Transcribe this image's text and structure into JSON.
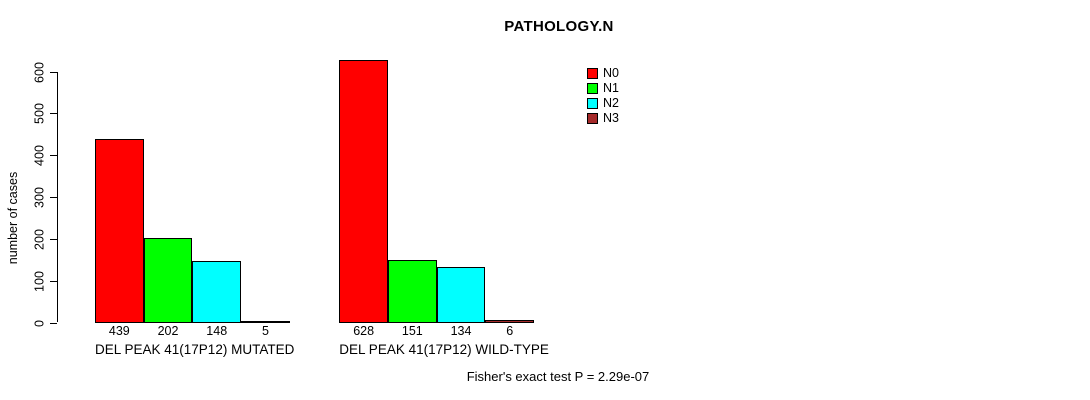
{
  "chart_data": {
    "type": "bar",
    "title": "PATHOLOGY.N",
    "xlabel": "",
    "ylabel": "number of cases",
    "ylim": [
      0,
      650
    ],
    "yticks": [
      0,
      100,
      200,
      300,
      400,
      500,
      600
    ],
    "grid": false,
    "bar_value_labels_shown": true,
    "legend_position": "top-right-of-plot",
    "categories": [
      "DEL PEAK 41(17P12) MUTATED",
      "DEL PEAK 41(17P12) WILD-TYPE"
    ],
    "series": [
      {
        "name": "N0",
        "color": "#FF0000",
        "values": [
          439,
          628
        ]
      },
      {
        "name": "N1",
        "color": "#00FF00",
        "values": [
          202,
          151
        ]
      },
      {
        "name": "N2",
        "color": "#00FFFF",
        "values": [
          148,
          134
        ]
      },
      {
        "name": "N3",
        "color": "#A52A2A",
        "values": [
          5,
          6
        ]
      }
    ],
    "annotation": "Fisher's exact test P = 2.29e-07"
  }
}
